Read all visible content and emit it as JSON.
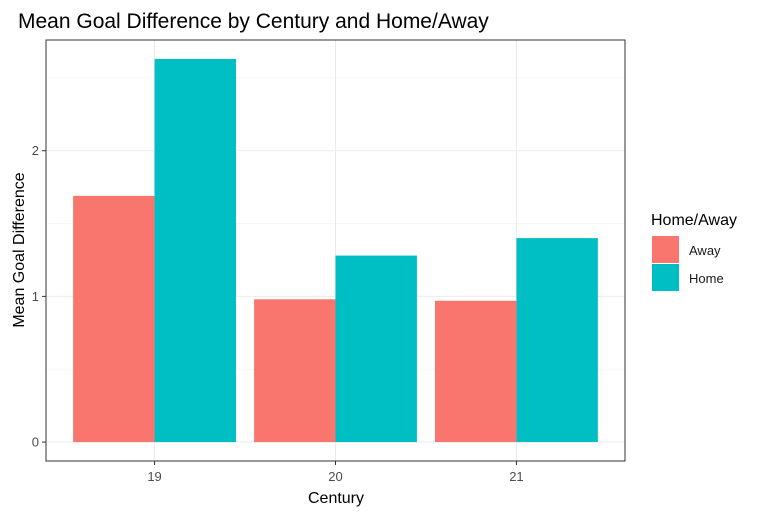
{
  "chart_data": {
    "type": "bar",
    "title": "Mean Goal Difference by Century and Home/Away",
    "xlabel": "Century",
    "ylabel": "Mean Goal Difference",
    "categories": [
      "19",
      "20",
      "21"
    ],
    "series": [
      {
        "name": "Away",
        "values": [
          1.69,
          0.98,
          0.97
        ],
        "color": "#F8766D"
      },
      {
        "name": "Home",
        "values": [
          2.63,
          1.28,
          1.4
        ],
        "color": "#00BFC4"
      }
    ],
    "ylim": [
      -0.13,
      2.76
    ],
    "yticks": [
      0,
      1,
      2
    ],
    "grid": true,
    "legend": {
      "title": "Home/Away",
      "position": "right"
    }
  }
}
